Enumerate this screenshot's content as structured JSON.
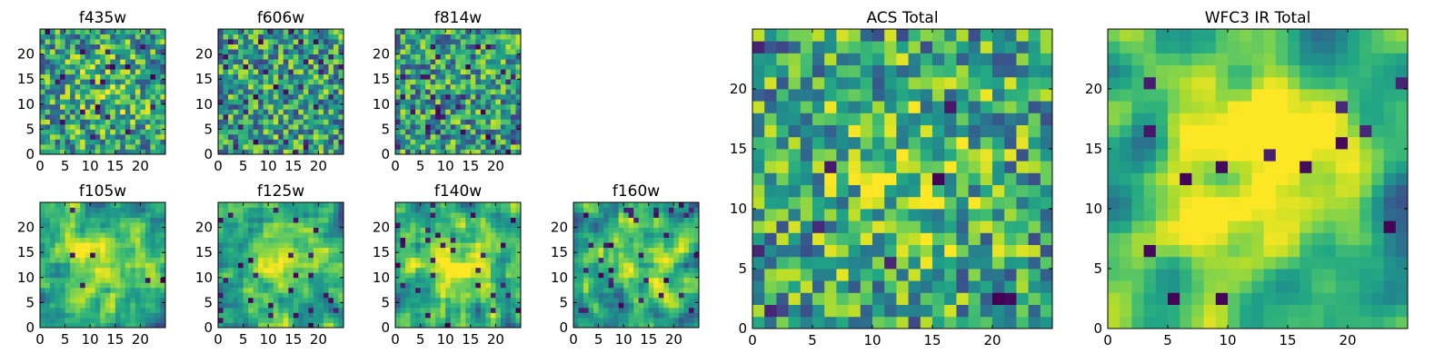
{
  "chart_data": [
    {
      "type": "heatmap",
      "title": "f435w",
      "xlabel": "",
      "ylabel": "",
      "grid_size": 25,
      "xlim": [
        0,
        25
      ],
      "ylim": [
        0,
        25
      ],
      "x_ticks": [
        "0",
        "5",
        "10",
        "15",
        "20"
      ],
      "y_ticks": [
        "0",
        "5",
        "10",
        "15",
        "20"
      ],
      "colormap": "viridis",
      "seed": 11,
      "smooth": 0,
      "center_peak": 0.15,
      "dark_fraction": 0.03,
      "grid": false
    },
    {
      "type": "heatmap",
      "title": "f606w",
      "xlabel": "",
      "ylabel": "",
      "grid_size": 25,
      "xlim": [
        0,
        25
      ],
      "ylim": [
        0,
        25
      ],
      "x_ticks": [
        "0",
        "5",
        "10",
        "15",
        "20"
      ],
      "y_ticks": [
        "0",
        "5",
        "10",
        "15",
        "20"
      ],
      "colormap": "viridis",
      "seed": 23,
      "smooth": 0,
      "center_peak": 0.0,
      "dark_fraction": 0.05,
      "grid": false
    },
    {
      "type": "heatmap",
      "title": "f814w",
      "xlabel": "",
      "ylabel": "",
      "grid_size": 25,
      "xlim": [
        0,
        25
      ],
      "ylim": [
        0,
        25
      ],
      "x_ticks": [
        "0",
        "5",
        "10",
        "15",
        "20"
      ],
      "y_ticks": [
        "0",
        "5",
        "10",
        "15",
        "20"
      ],
      "colormap": "viridis",
      "seed": 37,
      "smooth": 0,
      "center_peak": 0.0,
      "dark_fraction": 0.05,
      "grid": false
    },
    {
      "type": "heatmap",
      "title": "f105w",
      "xlabel": "",
      "ylabel": "",
      "grid_size": 25,
      "xlim": [
        0,
        25
      ],
      "ylim": [
        0,
        25
      ],
      "x_ticks": [
        "0",
        "5",
        "10",
        "15",
        "20"
      ],
      "y_ticks": [
        "0",
        "5",
        "10",
        "15",
        "20"
      ],
      "colormap": "viridis",
      "seed": 41,
      "smooth": 1,
      "center_peak": 0.35,
      "dark_fraction": 0.02,
      "grid": false
    },
    {
      "type": "heatmap",
      "title": "f125w",
      "xlabel": "",
      "ylabel": "",
      "grid_size": 25,
      "xlim": [
        0,
        25
      ],
      "ylim": [
        0,
        25
      ],
      "x_ticks": [
        "0",
        "5",
        "10",
        "15",
        "20"
      ],
      "y_ticks": [
        "0",
        "5",
        "10",
        "15",
        "20"
      ],
      "colormap": "viridis",
      "seed": 53,
      "smooth": 1,
      "center_peak": 0.3,
      "dark_fraction": 0.03,
      "grid": false
    },
    {
      "type": "heatmap",
      "title": "f140w",
      "xlabel": "",
      "ylabel": "",
      "grid_size": 25,
      "xlim": [
        0,
        25
      ],
      "ylim": [
        0,
        25
      ],
      "x_ticks": [
        "0",
        "5",
        "10",
        "15",
        "20"
      ],
      "y_ticks": [
        "0",
        "5",
        "10",
        "15",
        "20"
      ],
      "colormap": "viridis",
      "seed": 67,
      "smooth": 1,
      "center_peak": 0.3,
      "dark_fraction": 0.04,
      "grid": false
    },
    {
      "type": "heatmap",
      "title": "f160w",
      "xlabel": "",
      "ylabel": "",
      "grid_size": 25,
      "xlim": [
        0,
        25
      ],
      "ylim": [
        0,
        25
      ],
      "x_ticks": [
        "0",
        "5",
        "10",
        "15",
        "20"
      ],
      "y_ticks": [
        "0",
        "5",
        "10",
        "15",
        "20"
      ],
      "colormap": "viridis",
      "seed": 79,
      "smooth": 1,
      "center_peak": 0.25,
      "dark_fraction": 0.05,
      "grid": false
    },
    {
      "type": "heatmap",
      "title": "ACS Total",
      "xlabel": "",
      "ylabel": "",
      "grid_size": 25,
      "xlim": [
        0,
        25
      ],
      "ylim": [
        0,
        25
      ],
      "x_ticks": [
        "0",
        "5",
        "10",
        "15",
        "20"
      ],
      "y_ticks": [
        "0",
        "5",
        "10",
        "15",
        "20"
      ],
      "colormap": "viridis",
      "seed": 97,
      "smooth": 0,
      "center_peak": 0.2,
      "dark_fraction": 0.02,
      "grid": false
    },
    {
      "type": "heatmap",
      "title": "WFC3 IR Total",
      "xlabel": "",
      "ylabel": "",
      "grid_size": 25,
      "xlim": [
        0,
        25
      ],
      "ylim": [
        0,
        25
      ],
      "x_ticks": [
        "0",
        "5",
        "10",
        "15",
        "20"
      ],
      "y_ticks": [
        "0",
        "5",
        "10",
        "15",
        "20"
      ],
      "colormap": "viridis",
      "seed": 113,
      "smooth": 2,
      "center_peak": 0.45,
      "dark_fraction": 0.03,
      "grid": false
    }
  ]
}
